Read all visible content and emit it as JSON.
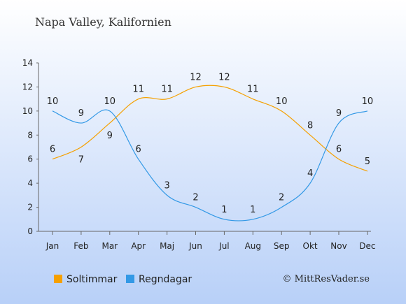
{
  "chart_data": {
    "type": "line",
    "title": "Napa Valley, Kalifornien",
    "categories": [
      "Jan",
      "Feb",
      "Mar",
      "Apr",
      "Maj",
      "Jun",
      "Jul",
      "Aug",
      "Sep",
      "Okt",
      "Nov",
      "Dec"
    ],
    "series": [
      {
        "name": "Soltimmar",
        "color": "#f5a000",
        "values": [
          6,
          7,
          9,
          11,
          11,
          12,
          12,
          11,
          10,
          8,
          6,
          5
        ]
      },
      {
        "name": "Regndagar",
        "color": "#3399e6",
        "values": [
          10,
          9,
          10,
          6,
          3,
          2,
          1,
          1,
          2,
          4,
          9,
          10
        ]
      }
    ],
    "yticks": [
      0,
      2,
      4,
      6,
      8,
      10,
      12,
      14
    ],
    "ylim": [
      0,
      14
    ],
    "xlabel": "",
    "ylabel": "",
    "grid": false,
    "legend": "bottom-left"
  },
  "credit": "© MittResVader.se",
  "colors": {
    "background_top": "#ffffff",
    "background_bottom": "#b8d0f8",
    "axis": "#666666"
  }
}
